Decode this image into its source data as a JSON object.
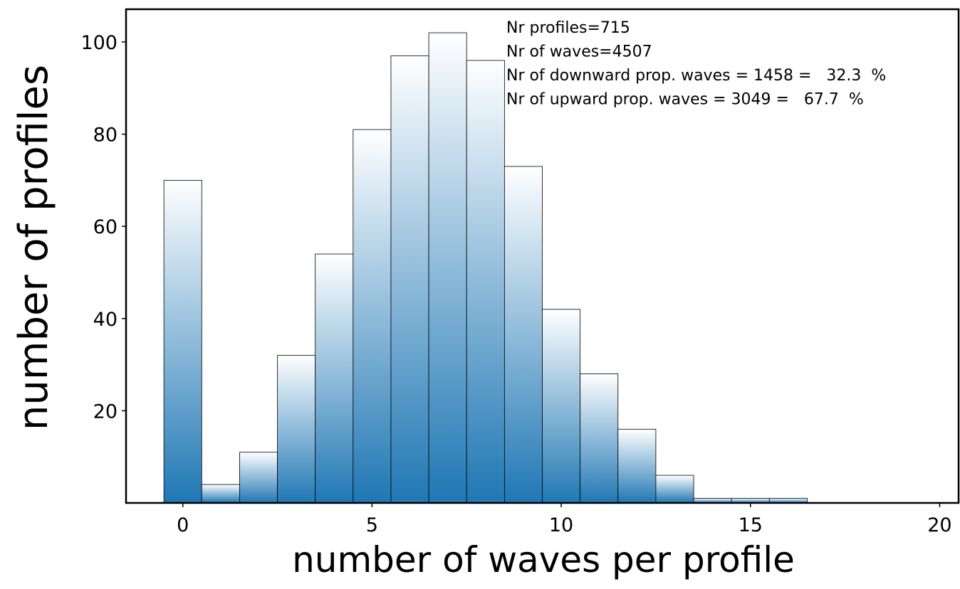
{
  "chart_data": {
    "type": "histogram",
    "xlabel": "number of waves per profile",
    "ylabel": "number of profiles",
    "bins": [
      -0.5,
      0.5,
      1.5,
      2.5,
      3.5,
      4.5,
      5.5,
      6.5,
      7.5,
      8.5,
      9.5,
      10.5,
      11.5,
      12.5,
      13.5,
      14.5,
      15.5,
      16.5
    ],
    "counts": [
      70,
      4,
      11,
      32,
      54,
      81,
      97,
      102,
      96,
      73,
      42,
      28,
      16,
      6,
      1,
      1,
      1
    ],
    "color": "#1f77b4",
    "xlim": [
      -1.5,
      20.5
    ],
    "xticks": [
      0,
      5,
      10,
      15,
      20
    ],
    "ylim": [
      0,
      107.1
    ],
    "yticks": [
      20,
      40,
      60,
      80,
      100
    ],
    "annotations": [
      "Nr profiles=715",
      "Nr of waves=4507",
      "Nr of downward prop. waves = 1458 =   32.3  %",
      "Nr of upward prop. waves = 3049 =   67.7  %"
    ]
  }
}
